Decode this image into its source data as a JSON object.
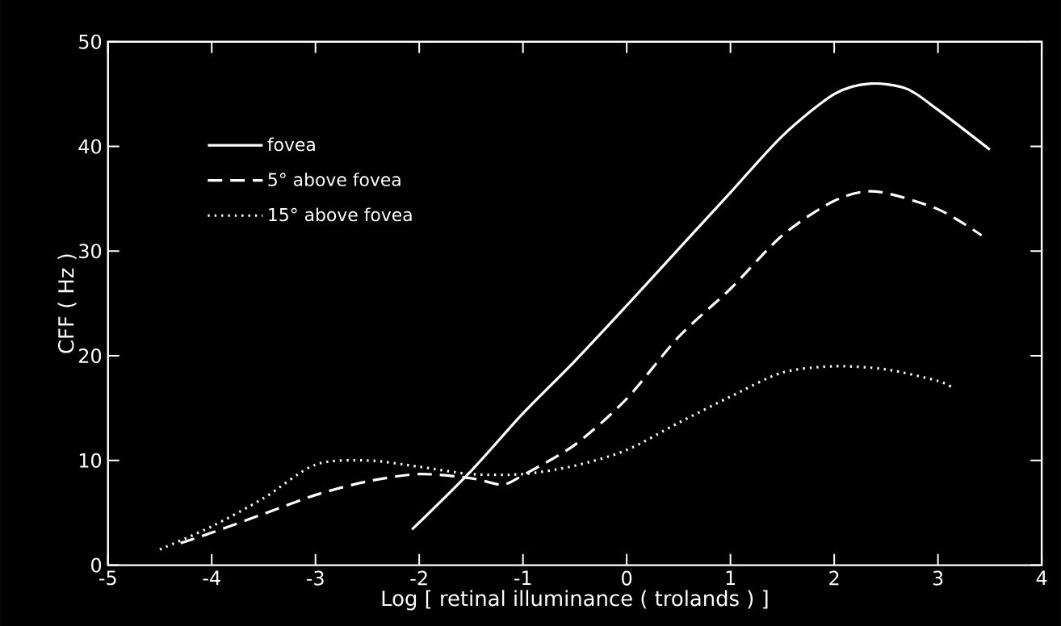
{
  "chart_data": {
    "type": "line",
    "xlabel": "Log [ retinal illuminance ( trolands ) ]",
    "ylabel": "CFF ( Hz )",
    "xlim": [
      -5,
      4
    ],
    "xticks": [
      -5,
      -4,
      -3,
      -2,
      -1,
      0,
      1,
      2,
      3,
      4
    ],
    "ylim": [
      0,
      50
    ],
    "yticks": [
      0,
      10,
      20,
      30,
      40,
      50
    ],
    "grid": false,
    "legend": "top left",
    "marker": "none",
    "series": [
      {
        "name": "fovea",
        "color": "#ffffff",
        "line_style": "solid",
        "x": [
          -2.07,
          -1.5,
          -1,
          -0.5,
          0,
          0.5,
          1,
          1.5,
          2,
          2.35,
          2.7,
          3,
          3.5
        ],
        "values": [
          3.4,
          9,
          14.5,
          19.5,
          24.8,
          30.2,
          35.6,
          41,
          45,
          46,
          45.5,
          43.5,
          39.7
        ]
      },
      {
        "name": "5° above fovea",
        "color": "#ffffff",
        "line_style": "dashed",
        "x": [
          -4.3,
          -4,
          -3.5,
          -3,
          -2.5,
          -2,
          -1.5,
          -1.2,
          -1,
          -0.5,
          0,
          0.5,
          1,
          1.5,
          2,
          2.4,
          3,
          3.42
        ],
        "values": [
          2.1,
          3.1,
          4.9,
          6.7,
          8,
          8.7,
          8.3,
          7.7,
          8.6,
          11.5,
          15.9,
          21.8,
          26.4,
          31.5,
          34.8,
          35.7,
          34,
          31.5
        ]
      },
      {
        "name": "15° above fovea",
        "color": "#ffffff",
        "line_style": "dotted",
        "x": [
          -4.5,
          -4,
          -3.5,
          -3,
          -2.5,
          -2,
          -1.5,
          -1,
          -0.5,
          0,
          0.5,
          1,
          1.5,
          2,
          2.5,
          3,
          3.15
        ],
        "values": [
          1.5,
          3.7,
          6.4,
          9.6,
          10,
          9.4,
          8.7,
          8.7,
          9.5,
          11,
          13.6,
          16.1,
          18.4,
          19,
          18.7,
          17.6,
          16.9
        ]
      }
    ]
  }
}
